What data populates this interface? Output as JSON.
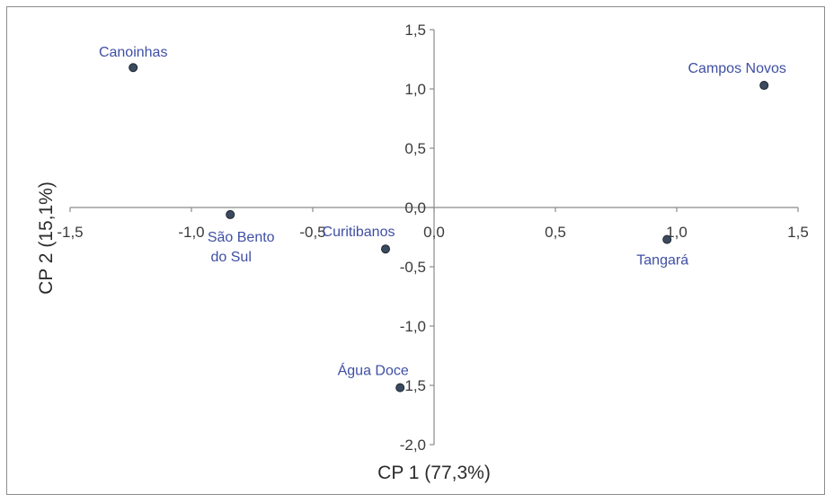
{
  "chart_data": {
    "type": "scatter",
    "xlabel": "CP 1 (77,3%)",
    "ylabel": "CP 2 (15,1%)",
    "xlim": [
      -1.5,
      1.5
    ],
    "ylim": [
      -2.0,
      1.5
    ],
    "x_ticks": [
      "-1,5",
      "-1,0",
      "-0,5",
      "0,0",
      "0,5",
      "1,0",
      "1,5"
    ],
    "x_tick_values": [
      -1.5,
      -1.0,
      -0.5,
      0.0,
      0.5,
      1.0,
      1.5
    ],
    "y_ticks": [
      "-2,0",
      "-1,5",
      "-1,0",
      "-0,5",
      "0,0",
      "0,5",
      "1,0",
      "1,5"
    ],
    "y_tick_values": [
      -2.0,
      -1.5,
      -1.0,
      -0.5,
      0.0,
      0.5,
      1.0,
      1.5
    ],
    "points": [
      {
        "label": "Canoinhas",
        "x": -1.24,
        "y": 1.18,
        "label_pos": "above"
      },
      {
        "label": "Campos Novos",
        "x": 1.36,
        "y": 1.03,
        "label_pos": "above-left"
      },
      {
        "label": "São Bento",
        "label2": "do Sul",
        "x": -0.84,
        "y": -0.06,
        "label_pos": "below-right"
      },
      {
        "label": "Curitibanos",
        "x": -0.2,
        "y": -0.35,
        "label_pos": "above-left"
      },
      {
        "label": "Tangará",
        "x": 0.96,
        "y": -0.27,
        "label_pos": "below"
      },
      {
        "label": "Água Doce",
        "x": -0.14,
        "y": -1.52,
        "label_pos": "above-left"
      }
    ],
    "grid": false,
    "legend": "none"
  }
}
